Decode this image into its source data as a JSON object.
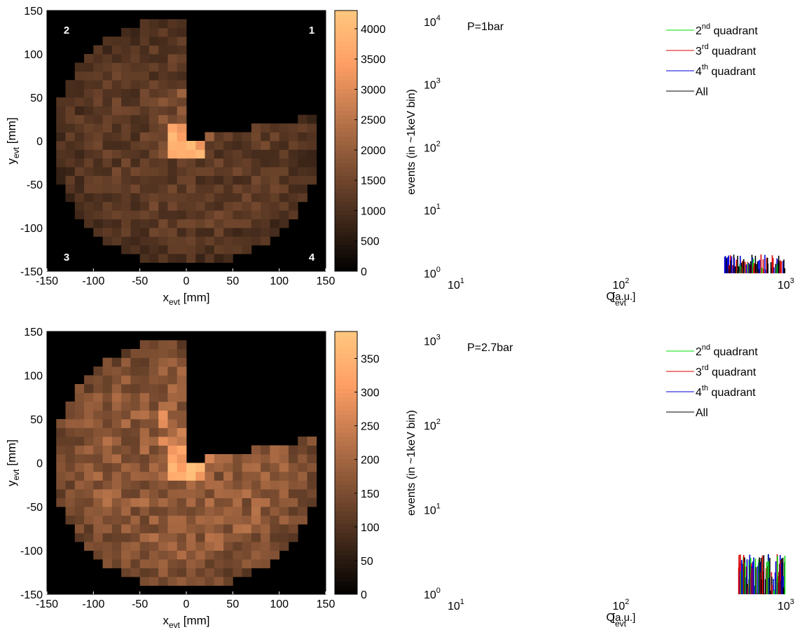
{
  "panels": [
    {
      "heatmap": {
        "type": "heatmap",
        "xlabel_main": "x",
        "xlabel_sub": "evt",
        "xlabel_unit": " [mm]",
        "ylabel_main": "y",
        "ylabel_sub": "evt",
        "ylabel_unit": " [mm]",
        "xlim": [
          -150,
          150
        ],
        "ylim": [
          -150,
          150
        ],
        "xticks": [
          "-150",
          "-100",
          "-50",
          "0",
          "50",
          "100",
          "150"
        ],
        "yticks": [
          "150",
          "100",
          "50",
          "0",
          "-50",
          "-100",
          "-150"
        ],
        "quadrant_labels": [
          "2",
          "1",
          "3",
          "4"
        ],
        "colorbar": {
          "range": [
            0,
            4300
          ],
          "ticks": [
            "4000",
            "3500",
            "3000",
            "2500",
            "2000",
            "1500",
            "1000",
            "500",
            "0"
          ],
          "tick_values": [
            4000,
            3500,
            3000,
            2500,
            2000,
            1500,
            1000,
            500,
            0
          ]
        },
        "description_values": {
          "bulk": 1300,
          "hotspot": 4200
        }
      },
      "spectrum": {
        "type": "bar",
        "annotation": "P=1bar",
        "ylabel": "events (in  ~1keV bin)",
        "xlabel_main": "Q",
        "xlabel_sub": "evt",
        "xlabel_unit": "[a.u.]",
        "xscale": "log",
        "yscale": "log",
        "xlim": [
          10,
          1000
        ],
        "ylim": [
          1,
          15000
        ],
        "xticks": [
          {
            "base": "10",
            "exp": "1"
          },
          {
            "base": "10",
            "exp": "2"
          },
          {
            "base": "10",
            "exp": "3"
          }
        ],
        "yticks": [
          {
            "base": "10",
            "exp": "0"
          },
          {
            "base": "10",
            "exp": "1"
          },
          {
            "base": "10",
            "exp": "2"
          },
          {
            "base": "10",
            "exp": "3"
          },
          {
            "base": "10",
            "exp": "4"
          }
        ],
        "legend_position": "top-right",
        "legend": [
          {
            "main": "2",
            "sup": "nd",
            "rest": " quadrant",
            "color": "#00dd00"
          },
          {
            "main": "3",
            "sup": "rd",
            "rest": "  quadrant",
            "color": "#dd0000"
          },
          {
            "main": "4",
            "sup": "th",
            "rest": "  quadrant",
            "color": "#0000dd"
          },
          {
            "main": "All",
            "sup": "",
            "rest": "",
            "color": "#000000"
          }
        ],
        "series_x_range": [
          430,
          1000
        ],
        "series_y_range": [
          1,
          2
        ]
      }
    },
    {
      "heatmap": {
        "type": "heatmap",
        "xlabel_main": "x",
        "xlabel_sub": "evt",
        "xlabel_unit": " [mm]",
        "ylabel_main": "y",
        "ylabel_sub": "evt",
        "ylabel_unit": " [mm]",
        "xlim": [
          -150,
          150
        ],
        "ylim": [
          -150,
          150
        ],
        "xticks": [
          "-150",
          "-100",
          "-50",
          "0",
          "50",
          "100",
          "150"
        ],
        "yticks": [
          "150",
          "100",
          "50",
          "0",
          "-50",
          "-100",
          "-150"
        ],
        "quadrant_labels": [],
        "colorbar": {
          "range": [
            0,
            390
          ],
          "ticks": [
            "350",
            "300",
            "250",
            "200",
            "150",
            "100",
            "50",
            "0"
          ],
          "tick_values": [
            350,
            300,
            250,
            200,
            150,
            100,
            50,
            0
          ]
        },
        "description_values": {
          "bulk": 180,
          "hotspot": 380
        }
      },
      "spectrum": {
        "type": "bar",
        "annotation": "P=2.7bar",
        "ylabel": "events (in  ~1keV bin)",
        "xlabel_main": "Q",
        "xlabel_sub": "evt",
        "xlabel_unit": "[a.u.]",
        "xscale": "log",
        "yscale": "log",
        "xlim": [
          10,
          1000
        ],
        "ylim": [
          1,
          1300
        ],
        "xticks": [
          {
            "base": "10",
            "exp": "1"
          },
          {
            "base": "10",
            "exp": "2"
          },
          {
            "base": "10",
            "exp": "3"
          }
        ],
        "yticks": [
          {
            "base": "10",
            "exp": "0"
          },
          {
            "base": "10",
            "exp": "1"
          },
          {
            "base": "10",
            "exp": "2"
          },
          {
            "base": "10",
            "exp": "3"
          }
        ],
        "legend_position": "top-right",
        "legend": [
          {
            "main": "2",
            "sup": "nd",
            "rest": " quadrant",
            "color": "#00dd00"
          },
          {
            "main": "3",
            "sup": "rd",
            "rest": "  quadrant",
            "color": "#dd0000"
          },
          {
            "main": "4",
            "sup": "th",
            "rest": "  quadrant",
            "color": "#0000dd"
          },
          {
            "main": "All",
            "sup": "",
            "rest": "",
            "color": "#000000"
          }
        ],
        "series_x_range": [
          520,
          1000
        ],
        "series_y_range": [
          1,
          3
        ]
      }
    }
  ]
}
